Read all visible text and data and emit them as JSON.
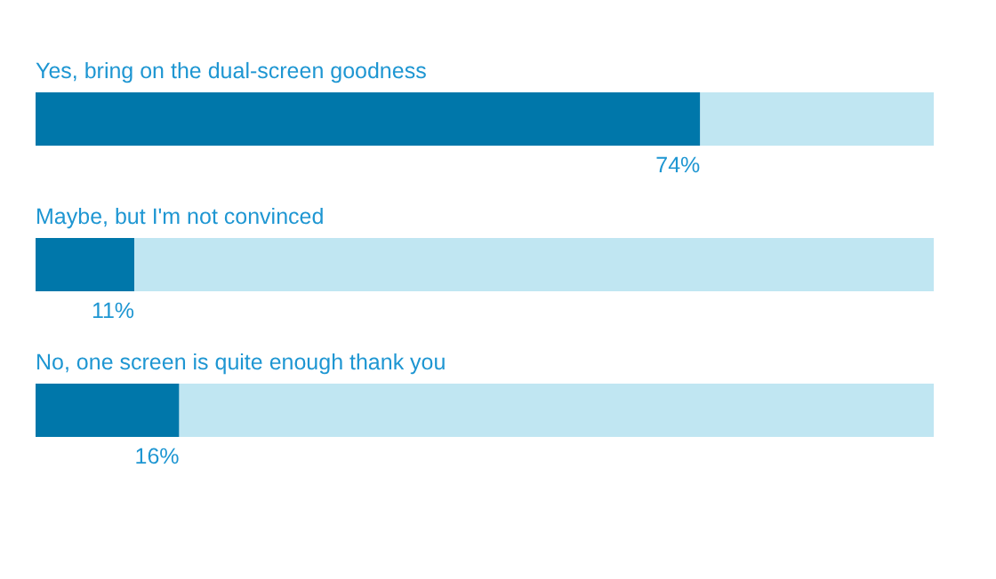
{
  "chart_data": {
    "type": "bar",
    "orientation": "horizontal",
    "stacked": true,
    "categories": [
      "Yes, bring on the dual-screen goodness",
      "Maybe, but I'm not convinced",
      "No, one screen is quite enough thank you"
    ],
    "xlim": [
      0,
      100
    ],
    "series": [
      {
        "color": "#0077aa",
        "values": [
          74,
          11,
          16
        ],
        "value_labels": [
          "74%",
          "11%",
          "16%"
        ]
      },
      {
        "color": "#c0e6f2",
        "values": [
          26,
          89,
          84
        ]
      }
    ]
  }
}
